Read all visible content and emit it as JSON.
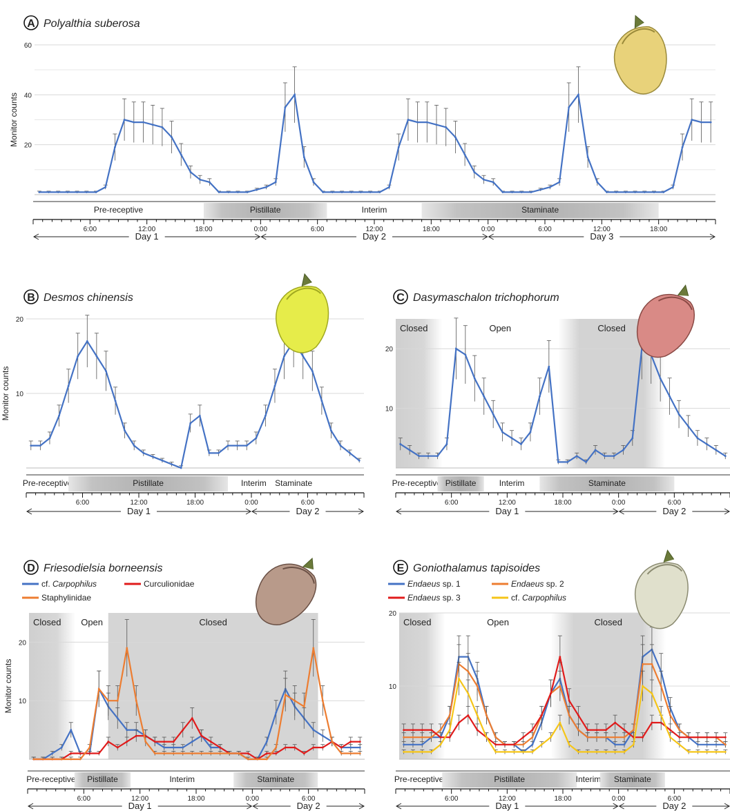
{
  "chart_data": [
    {
      "panel": "A",
      "title": "Polyalthia suberosa",
      "type": "line",
      "ylabel": "Monitor counts",
      "ylim": [
        0,
        60
      ],
      "yticks": [
        20,
        40,
        60
      ],
      "xlim": [
        0,
        72
      ],
      "xticks": [
        6,
        12,
        18,
        24,
        30,
        36,
        42,
        48,
        54,
        60,
        66
      ],
      "xtick_labels": [
        "6:00",
        "12:00",
        "18:00",
        "0:00",
        "6:00",
        "12:00",
        "18:00",
        "0:00",
        "6:00",
        "12:00",
        "18:00"
      ],
      "days": [
        {
          "label": "Day 1",
          "start": 0,
          "end": 24
        },
        {
          "label": "Day 2",
          "start": 24,
          "end": 48
        },
        {
          "label": "Day 3",
          "start": 48,
          "end": 72
        }
      ],
      "phases": [
        {
          "label": "Pre-receptive",
          "start": 0,
          "end": 18,
          "shade": "none"
        },
        {
          "label": "Pistillate",
          "start": 18,
          "end": 31,
          "shade": "bar"
        },
        {
          "label": "Interim",
          "start": 31,
          "end": 41,
          "shade": "none"
        },
        {
          "label": "Staminate",
          "start": 41,
          "end": 66,
          "shade": "bar"
        }
      ],
      "series": [
        {
          "color": "#4472C4",
          "x_start": 0,
          "x_step": 1,
          "values": [
            1,
            1,
            1,
            1,
            1,
            1,
            1,
            3,
            19,
            30,
            29,
            29,
            28,
            27,
            23,
            16,
            9,
            6,
            5,
            1,
            1,
            1,
            1,
            2,
            3,
            5,
            35,
            40,
            15,
            5,
            1,
            1,
            1,
            1,
            1,
            1,
            1,
            3,
            19,
            30,
            29,
            29,
            28,
            27,
            23,
            16,
            9,
            6,
            5,
            1,
            1,
            1,
            1,
            2,
            3,
            5,
            35,
            40,
            15,
            5,
            1,
            1,
            1,
            1,
            1,
            1,
            1,
            3,
            19,
            30,
            29,
            29
          ]
        }
      ]
    },
    {
      "panel": "B",
      "title": "Desmos chinensis",
      "type": "line",
      "ylabel": "Monitor counts",
      "ylim": [
        0,
        20
      ],
      "yticks": [
        10,
        20
      ],
      "xlim": [
        0,
        36
      ],
      "xticks": [
        6,
        12,
        18,
        24,
        30
      ],
      "xtick_labels": [
        "6:00",
        "12:00",
        "18:00",
        "0:00",
        "6:00"
      ],
      "days": [
        {
          "label": "Day 1",
          "start": 0,
          "end": 24
        },
        {
          "label": "Day 2",
          "start": 24,
          "end": 36
        }
      ],
      "phases": [
        {
          "label": "Pre-receptive",
          "start": 0,
          "end": 4.5,
          "shade": "none"
        },
        {
          "label": "Pistillate",
          "start": 4.5,
          "end": 21.5,
          "shade": "bar"
        },
        {
          "label": "Interim",
          "start": 21.5,
          "end": 27,
          "shade": "none"
        },
        {
          "label": "Staminate",
          "start": 27,
          "end": 30,
          "shade": "none"
        }
      ],
      "series": [
        {
          "color": "#4472C4",
          "x_start": 0,
          "x_step": 1,
          "values": [
            3,
            3,
            4,
            7,
            11,
            15,
            17,
            15,
            13,
            9,
            5,
            3,
            2,
            1.5,
            1,
            0.5,
            0,
            6,
            7,
            2,
            2,
            3,
            3,
            3,
            4,
            7,
            11,
            15,
            17,
            15,
            13,
            9,
            5,
            3,
            2,
            1
          ]
        }
      ]
    },
    {
      "panel": "C",
      "title": "Dasymaschalon trichophorum",
      "type": "line",
      "ylabel": "",
      "ylim": [
        0,
        25
      ],
      "yticks": [
        10,
        20
      ],
      "xlim": [
        0,
        36
      ],
      "xticks": [
        6,
        12,
        18,
        24,
        30
      ],
      "xtick_labels": [
        "6:00",
        "12:00",
        "18:00",
        "0:00",
        "6:00"
      ],
      "days": [
        {
          "label": "Day 1",
          "start": 0,
          "end": 24
        },
        {
          "label": "Day 2",
          "start": 24,
          "end": 36
        }
      ],
      "regions": [
        {
          "label": "Closed",
          "start": 0,
          "end": 5,
          "shade": "gradient"
        },
        {
          "label": "Open",
          "start": 5,
          "end": 17.5,
          "shade": "none"
        },
        {
          "label": "Closed",
          "start": 17.5,
          "end": 29,
          "shade": "gradient"
        }
      ],
      "phases": [
        {
          "label": "Pre-receptive",
          "start": 0,
          "end": 4.5,
          "shade": "none"
        },
        {
          "label": "Pistillate",
          "start": 4.5,
          "end": 9.5,
          "shade": "bar"
        },
        {
          "label": "Interim",
          "start": 9.5,
          "end": 15.5,
          "shade": "none"
        },
        {
          "label": "Staminate",
          "start": 15.5,
          "end": 30,
          "shade": "bar"
        }
      ],
      "series": [
        {
          "color": "#4472C4",
          "x_start": 0,
          "x_step": 1,
          "values": [
            4,
            3,
            2,
            2,
            2,
            4,
            20,
            19,
            15,
            12,
            9,
            6,
            5,
            4,
            6,
            12,
            17,
            1,
            1,
            2,
            1,
            3,
            2,
            2,
            3,
            5,
            20,
            19,
            15,
            12,
            9,
            7,
            5,
            4,
            3,
            2
          ]
        }
      ]
    },
    {
      "panel": "D",
      "title": "Friesodielsia borneensis",
      "type": "line",
      "ylabel": "Monitor counts",
      "ylim": [
        0,
        25
      ],
      "yticks": [
        10,
        20
      ],
      "xlim": [
        0,
        36
      ],
      "xticks": [
        6,
        12,
        18,
        24,
        30
      ],
      "xtick_labels": [
        "6:00",
        "12:00",
        "18:00",
        "0:00",
        "6:00"
      ],
      "days": [
        {
          "label": "Day 1",
          "start": 0,
          "end": 24
        },
        {
          "label": "Day 2",
          "start": 24,
          "end": 36
        }
      ],
      "regions": [
        {
          "label": "Closed",
          "start": 0,
          "end": 5,
          "shade": "gradient"
        },
        {
          "label": "Open",
          "start": 5,
          "end": 8.5,
          "shade": "none"
        },
        {
          "label": "Closed",
          "start": 8.5,
          "end": 31,
          "shade": "solid"
        }
      ],
      "phases": [
        {
          "label": "Pre-receptive",
          "start": 0,
          "end": 5,
          "shade": "none"
        },
        {
          "label": "Pistillate",
          "start": 5,
          "end": 11,
          "shade": "bar"
        },
        {
          "label": "Interim",
          "start": 11,
          "end": 22,
          "shade": "none"
        },
        {
          "label": "Staminate",
          "start": 22,
          "end": 31,
          "shade": "bar"
        }
      ],
      "series": [
        {
          "name": "cf. Carpophilus",
          "name_prefix": "cf. ",
          "name_italic": "Carpophilus",
          "color": "#4472C4",
          "x_start": 0,
          "x_step": 1,
          "values": [
            0,
            0,
            1,
            2,
            5,
            1,
            1,
            12,
            9,
            7,
            5,
            5,
            4,
            3,
            2,
            2,
            2,
            3,
            4,
            2,
            2,
            1,
            1,
            0,
            0,
            3,
            8,
            12,
            9,
            7,
            5,
            4,
            3,
            2,
            2,
            2
          ]
        },
        {
          "name": "Curculionidae",
          "color": "#E01B1B",
          "x_start": 0,
          "x_step": 1,
          "values": [
            0,
            0,
            0,
            0,
            1,
            1,
            1,
            1,
            3,
            2,
            3,
            4,
            4,
            3,
            3,
            3,
            5,
            7,
            4,
            3,
            2,
            1,
            1,
            1,
            0,
            1,
            1,
            2,
            2,
            1,
            2,
            2,
            3,
            2,
            3,
            3
          ]
        },
        {
          "name": "Staphylinidae",
          "color": "#ED7D31",
          "x_start": 0,
          "x_step": 1,
          "values": [
            0,
            0,
            0,
            0,
            0,
            0,
            2,
            12,
            10,
            10,
            19,
            10,
            3,
            1,
            1,
            1,
            1,
            1,
            1,
            1,
            1,
            1,
            1,
            0,
            0,
            0,
            2,
            11,
            10,
            9,
            19,
            10,
            3,
            1,
            1,
            1
          ]
        }
      ]
    },
    {
      "panel": "E",
      "title": "Goniothalamus tapisoides",
      "type": "line",
      "ylabel": "",
      "ylim": [
        0,
        20
      ],
      "yticks": [
        10,
        20
      ],
      "xlim": [
        0,
        36
      ],
      "xticks": [
        6,
        12,
        18,
        24,
        30
      ],
      "xtick_labels": [
        "6:00",
        "12:00",
        "18:00",
        "0:00",
        "6:00"
      ],
      "days": [
        {
          "label": "Day 1",
          "start": 0,
          "end": 24
        },
        {
          "label": "Day 2",
          "start": 24,
          "end": 36
        }
      ],
      "regions": [
        {
          "label": "Closed",
          "start": 0,
          "end": 5,
          "shade": "gradient"
        },
        {
          "label": "Open",
          "start": 5,
          "end": 16.5,
          "shade": "none"
        },
        {
          "label": "Closed",
          "start": 16.5,
          "end": 29,
          "shade": "gradient"
        }
      ],
      "phases": [
        {
          "label": "Pre-receptive",
          "start": 0,
          "end": 5,
          "shade": "none"
        },
        {
          "label": "Pistillate",
          "start": 5,
          "end": 19.5,
          "shade": "bar"
        },
        {
          "label": "Interim",
          "start": 19.5,
          "end": 22,
          "shade": "none"
        },
        {
          "label": "Staminate",
          "start": 22,
          "end": 29,
          "shade": "bar"
        }
      ],
      "series": [
        {
          "name": "Endaeus sp. 1",
          "name_italic": "Endaeus",
          "name_suffix": " sp. 1",
          "color": "#4472C4",
          "x_start": 0,
          "x_step": 1,
          "values": [
            2,
            2,
            2,
            3,
            3,
            6,
            14,
            14,
            11,
            6,
            3,
            2,
            2,
            1,
            2,
            5,
            9,
            11,
            6,
            4,
            3,
            3,
            3,
            2,
            2,
            4,
            14,
            15,
            12,
            7,
            4,
            3,
            2,
            2,
            2,
            2
          ]
        },
        {
          "name": "Endaeus sp. 2",
          "name_italic": "Endaeus",
          "name_suffix": " sp. 2",
          "color": "#ED7D31",
          "x_start": 0,
          "x_step": 1,
          "values": [
            3,
            3,
            3,
            3,
            4,
            6,
            13,
            12,
            10,
            6,
            3,
            2,
            2,
            2,
            3,
            6,
            9,
            10,
            6,
            4,
            3,
            3,
            3,
            3,
            3,
            4,
            13,
            13,
            10,
            6,
            4,
            3,
            3,
            3,
            3,
            2
          ]
        },
        {
          "name": "Endaeus sp. 3",
          "name_italic": "Endaeus",
          "name_suffix": " sp. 3",
          "color": "#E01B1B",
          "x_start": 0,
          "x_step": 1,
          "values": [
            4,
            4,
            4,
            4,
            3,
            3,
            5,
            6,
            4,
            3,
            2,
            2,
            2,
            3,
            4,
            6,
            9,
            14,
            8,
            6,
            4,
            4,
            4,
            5,
            4,
            3,
            3,
            5,
            5,
            4,
            3,
            3,
            3,
            3,
            3,
            3
          ]
        },
        {
          "name": "cf. Carpophilus",
          "name_prefix": "cf. ",
          "name_italic": "Carpophilus",
          "color": "#F5C518",
          "x_start": 0,
          "x_step": 1,
          "values": [
            1,
            1,
            1,
            1,
            2,
            4,
            11,
            9,
            6,
            3,
            1,
            1,
            1,
            1,
            1,
            2,
            3,
            5,
            2,
            1,
            1,
            1,
            1,
            1,
            1,
            2,
            10,
            9,
            6,
            3,
            2,
            1,
            1,
            1,
            1,
            1
          ]
        }
      ]
    }
  ]
}
